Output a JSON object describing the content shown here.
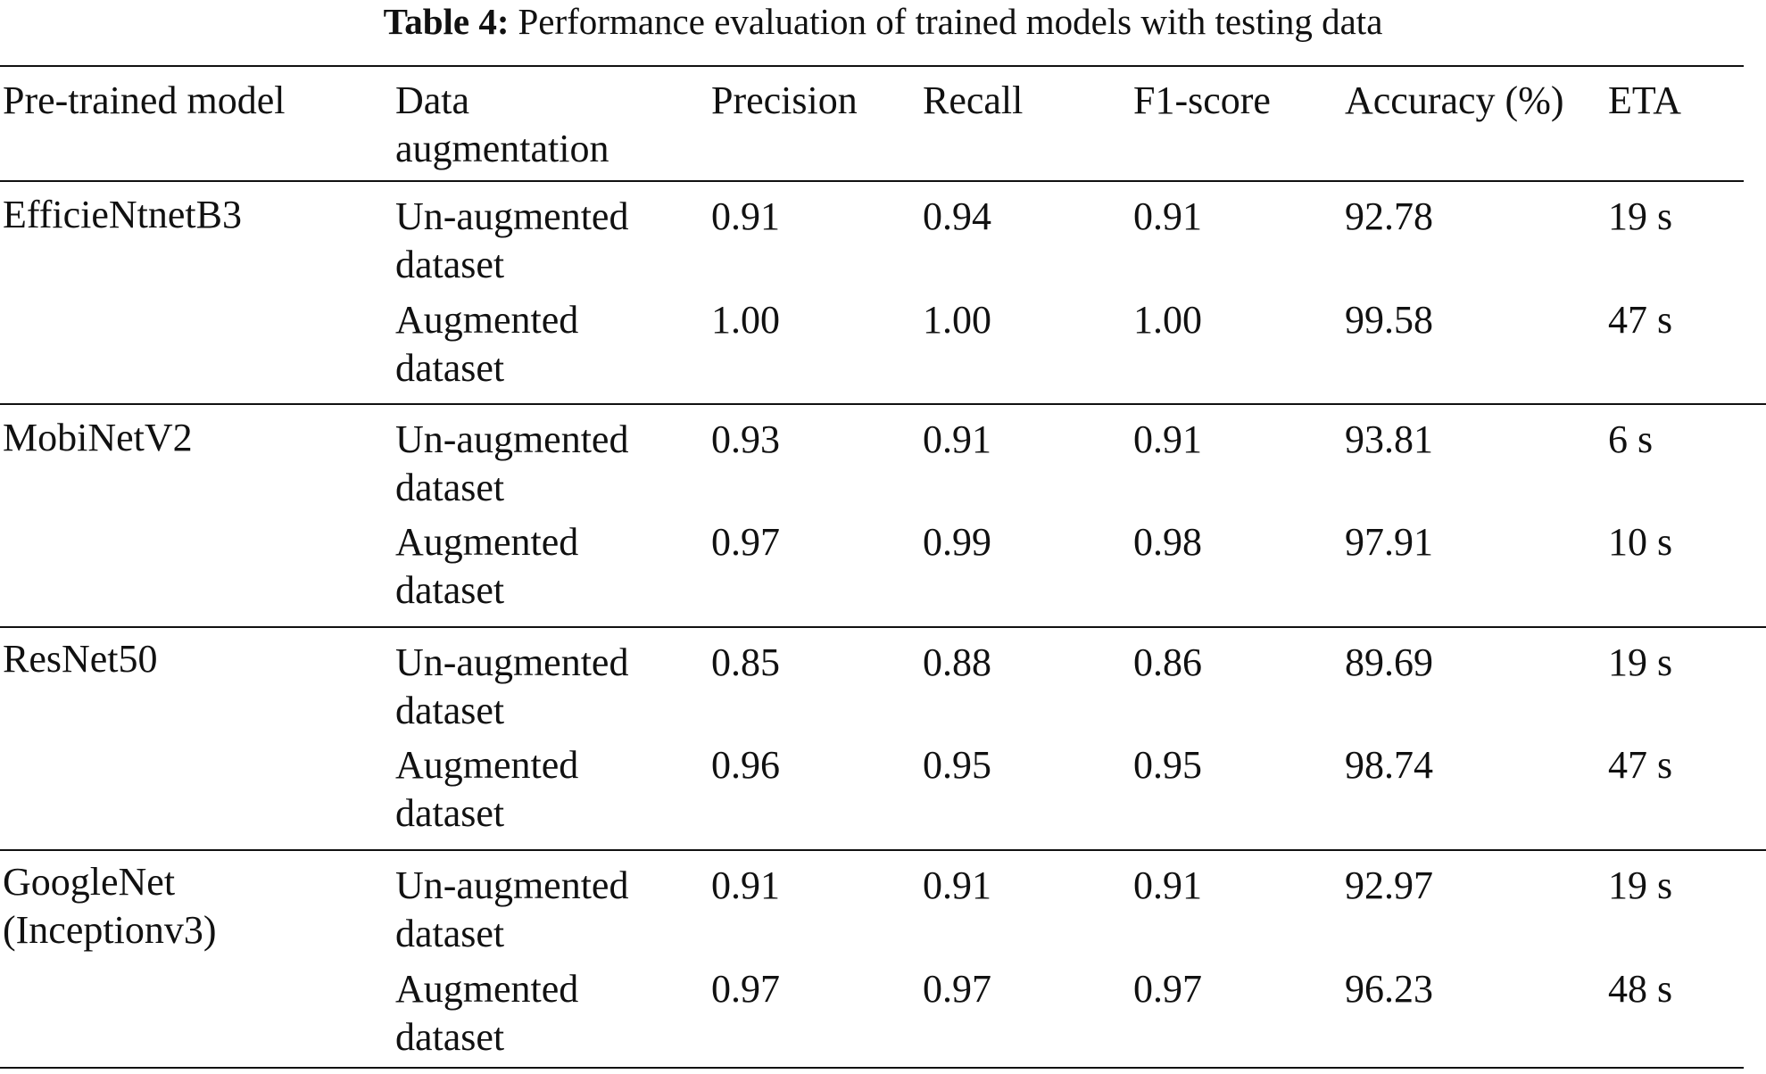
{
  "caption": {
    "label": "Table 4:",
    "text": "Performance evaluation of trained models with testing data"
  },
  "headers": {
    "model": "Pre-trained model",
    "augmentation_line1": "Data",
    "augmentation_line2": "augmentation",
    "precision": "Precision",
    "recall": "Recall",
    "f1": "F1-score",
    "accuracy": "Accuracy (%)",
    "eta": "ETA"
  },
  "groups": [
    {
      "model_line1": "EfficieNtnetB3",
      "model_line2": "",
      "rows": [
        {
          "aug_line1": "Un-augmented",
          "aug_line2": "dataset",
          "precision": "0.91",
          "recall": "0.94",
          "f1": "0.91",
          "accuracy": "92.78",
          "eta": "19 s"
        },
        {
          "aug_line1": "Augmented",
          "aug_line2": "dataset",
          "precision": "1.00",
          "recall": "1.00",
          "f1": "1.00",
          "accuracy": "99.58",
          "eta": "47 s"
        }
      ]
    },
    {
      "model_line1": "MobiNetV2",
      "model_line2": "",
      "rows": [
        {
          "aug_line1": "Un-augmented",
          "aug_line2": "dataset",
          "precision": "0.93",
          "recall": "0.91",
          "f1": "0.91",
          "accuracy": "93.81",
          "eta": "6 s"
        },
        {
          "aug_line1": "Augmented",
          "aug_line2": "dataset",
          "precision": "0.97",
          "recall": "0.99",
          "f1": "0.98",
          "accuracy": "97.91",
          "eta": "10 s"
        }
      ]
    },
    {
      "model_line1": "ResNet50",
      "model_line2": "",
      "rows": [
        {
          "aug_line1": "Un-augmented",
          "aug_line2": "dataset",
          "precision": "0.85",
          "recall": "0.88",
          "f1": "0.86",
          "accuracy": "89.69",
          "eta": "19 s"
        },
        {
          "aug_line1": "Augmented",
          "aug_line2": "dataset",
          "precision": "0.96",
          "recall": "0.95",
          "f1": "0.95",
          "accuracy": "98.74",
          "eta": "47 s"
        }
      ]
    },
    {
      "model_line1": "GoogleNet",
      "model_line2": "(Inceptionv3)",
      "rows": [
        {
          "aug_line1": "Un-augmented",
          "aug_line2": "dataset",
          "precision": "0.91",
          "recall": "0.91",
          "f1": "0.91",
          "accuracy": "92.97",
          "eta": "19 s"
        },
        {
          "aug_line1": "Augmented",
          "aug_line2": "dataset",
          "precision": "0.97",
          "recall": "0.97",
          "f1": "0.97",
          "accuracy": "96.23",
          "eta": "48 s"
        }
      ]
    }
  ]
}
